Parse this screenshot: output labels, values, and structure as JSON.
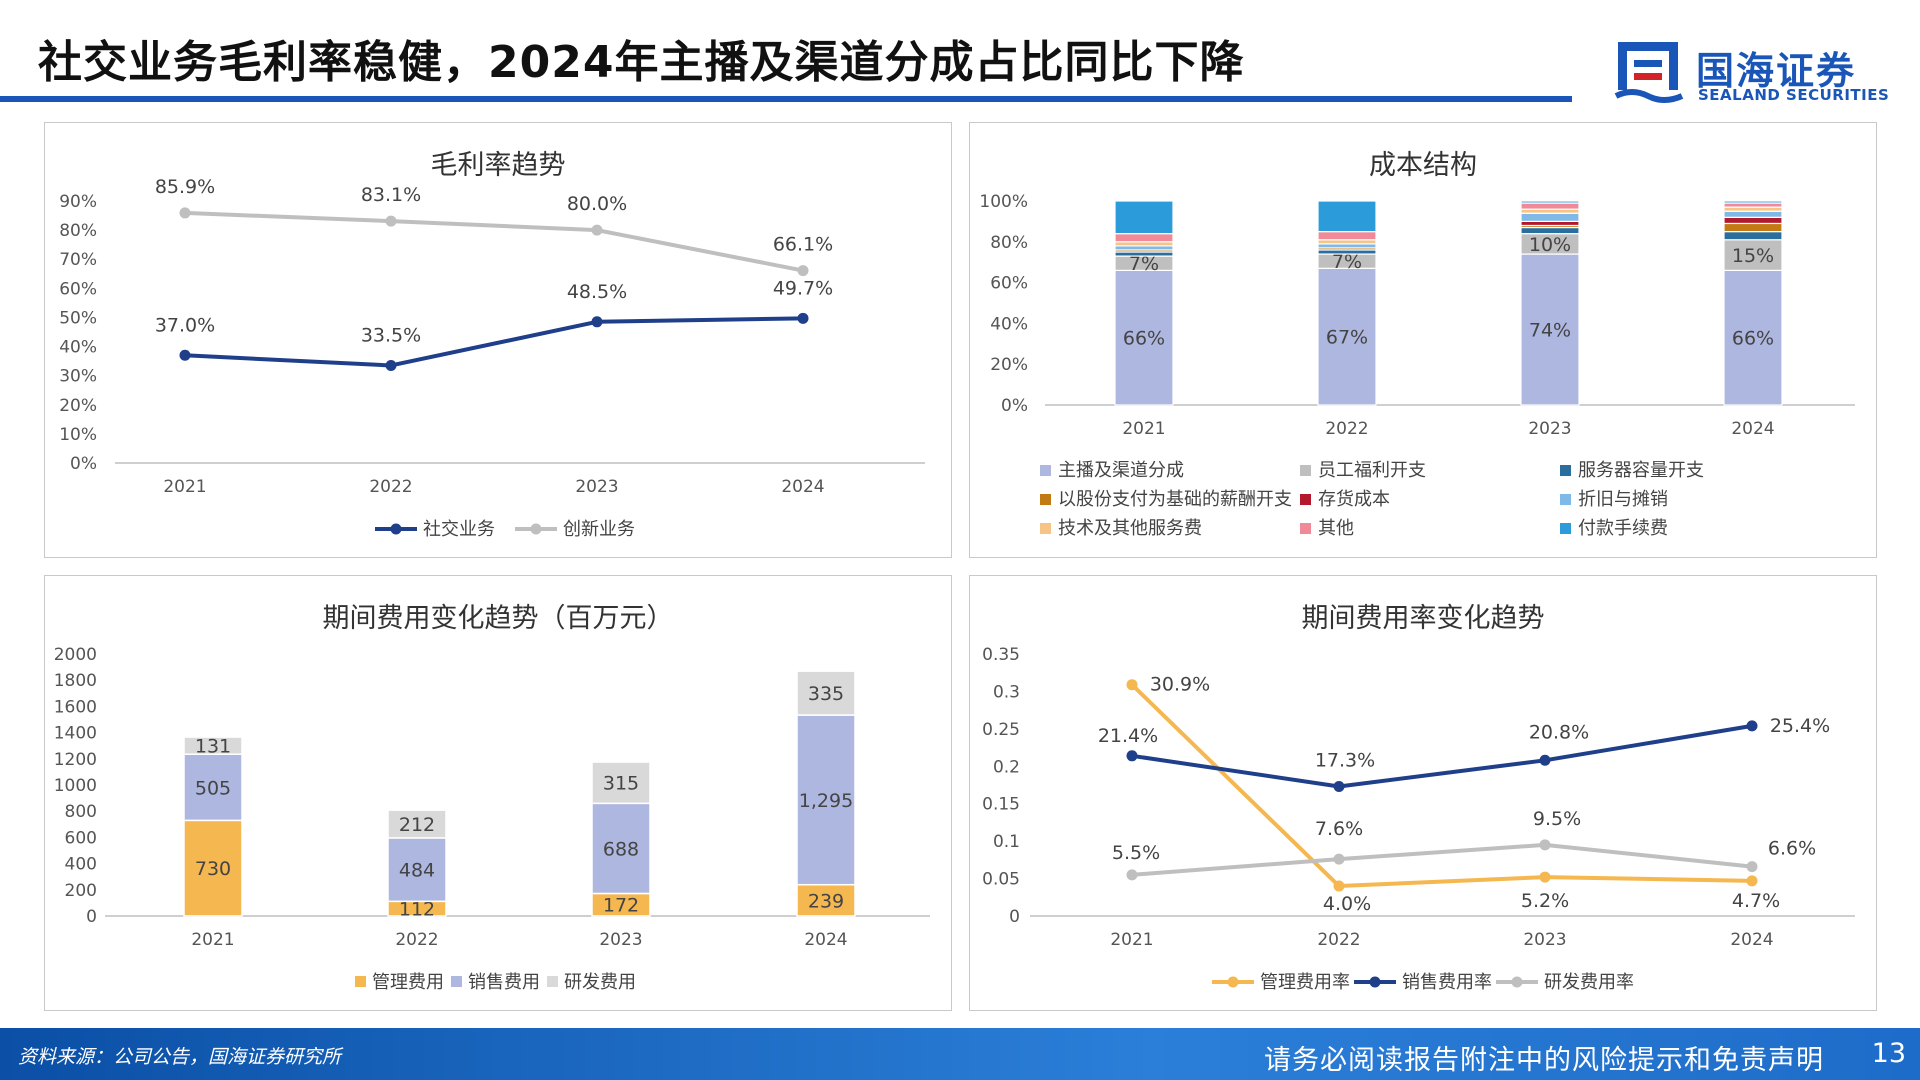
{
  "header": {
    "title": "社交业务毛利率稳健，2024年主播及渠道分成占比同比下降",
    "logo_cn": "国海证券",
    "logo_en": "SEALAND SECURITIES"
  },
  "footer": {
    "source": "资料来源：公司公告，国海证券研究所",
    "disclaimer": "请务必阅读报告附注中的风险提示和免责声明",
    "page": "13"
  },
  "colors": {
    "brand": "#1a56b8",
    "navy": "#1f3f8a",
    "gray_line": "#bfbfbf",
    "orange": "#f5b750",
    "lavender": "#aeb7e0",
    "lightgray": "#d9d9d9"
  },
  "chart_data": [
    {
      "id": "gross_margin",
      "type": "line",
      "title": "毛利率趋势",
      "categories": [
        "2021",
        "2022",
        "2023",
        "2024"
      ],
      "ylim": [
        0,
        0.9
      ],
      "yticks": [
        "0%",
        "10%",
        "20%",
        "30%",
        "40%",
        "50%",
        "60%",
        "70%",
        "80%",
        "90%"
      ],
      "series": [
        {
          "name": "社交业务",
          "color": "#1f3f8a",
          "values": [
            0.37,
            0.335,
            0.485,
            0.497
          ],
          "labels": [
            "37.0%",
            "33.5%",
            "48.5%",
            "49.7%"
          ]
        },
        {
          "name": "创新业务",
          "color": "#bfbfbf",
          "values": [
            0.859,
            0.831,
            0.8,
            0.661
          ],
          "labels": [
            "85.9%",
            "83.1%",
            "80.0%",
            "66.1%"
          ]
        }
      ]
    },
    {
      "id": "cost_structure",
      "type": "bar",
      "stacked": true,
      "title": "成本结构",
      "categories": [
        "2021",
        "2022",
        "2023",
        "2024"
      ],
      "ylim": [
        0,
        1
      ],
      "yticks": [
        "0%",
        "20%",
        "40%",
        "60%",
        "80%",
        "100%"
      ],
      "series": [
        {
          "name": "主播及渠道分成",
          "color": "#aeb7e0",
          "values": [
            0.66,
            0.67,
            0.74,
            0.66
          ],
          "labels": [
            "66%",
            "67%",
            "74%",
            "66%"
          ]
        },
        {
          "name": "员工福利开支",
          "color": "#bfbfbf",
          "values": [
            0.07,
            0.07,
            0.1,
            0.15
          ],
          "labels": [
            "7%",
            "7%",
            "10%",
            "15%"
          ]
        },
        {
          "name": "服务器容量开支",
          "color": "#2a6e9e",
          "values": [
            0.02,
            0.02,
            0.03,
            0.04
          ]
        },
        {
          "name": "以股份支付为基础的薪酬开支",
          "color": "#c27a14",
          "values": [
            0.01,
            0.01,
            0.01,
            0.04
          ]
        },
        {
          "name": "存货成本",
          "color": "#b4182c",
          "values": [
            0.0,
            0.0,
            0.02,
            0.03
          ]
        },
        {
          "name": "折旧与摊销",
          "color": "#7fb9e8",
          "values": [
            0.02,
            0.02,
            0.04,
            0.03
          ]
        },
        {
          "name": "技术及其他服务费",
          "color": "#f6c486",
          "values": [
            0.02,
            0.02,
            0.02,
            0.02
          ]
        },
        {
          "name": "其他",
          "color": "#f08a98",
          "values": [
            0.04,
            0.04,
            0.03,
            0.02
          ]
        },
        {
          "name": "付款手续费",
          "color": "#2b9bd9",
          "values": [
            0.16,
            0.15,
            0.01,
            0.01
          ]
        }
      ]
    },
    {
      "id": "expenses",
      "type": "bar",
      "stacked": true,
      "title": "期间费用变化趋势（百万元）",
      "categories": [
        "2021",
        "2022",
        "2023",
        "2024"
      ],
      "ylim": [
        0,
        2000
      ],
      "yticks": [
        "0",
        "200",
        "400",
        "600",
        "800",
        "1000",
        "1200",
        "1400",
        "1600",
        "1800",
        "2000"
      ],
      "series": [
        {
          "name": "管理费用",
          "color": "#f5b750",
          "values": [
            730,
            112,
            172,
            239
          ],
          "labels": [
            "730",
            "112",
            "172",
            "239"
          ]
        },
        {
          "name": "销售费用",
          "color": "#aeb7e0",
          "values": [
            505,
            484,
            688,
            1295
          ],
          "labels": [
            "505",
            "484",
            "688",
            "1,295"
          ]
        },
        {
          "name": "研发费用",
          "color": "#d9d9d9",
          "values": [
            131,
            212,
            315,
            335
          ],
          "labels": [
            "131",
            "212",
            "315",
            "335"
          ]
        }
      ]
    },
    {
      "id": "expense_ratio",
      "type": "line",
      "title": "期间费用率变化趋势",
      "categories": [
        "2021",
        "2022",
        "2023",
        "2024"
      ],
      "ylim": [
        0,
        0.35
      ],
      "yticks": [
        "0",
        "0.05",
        "0.1",
        "0.15",
        "0.2",
        "0.25",
        "0.3",
        "0.35"
      ],
      "series": [
        {
          "name": "管理费用率",
          "color": "#f5b750",
          "values": [
            0.309,
            0.04,
            0.052,
            0.047
          ],
          "labels": [
            "30.9%",
            "4.0%",
            "5.2%",
            "4.7%"
          ]
        },
        {
          "name": "销售费用率",
          "color": "#1f3f8a",
          "values": [
            0.214,
            0.173,
            0.208,
            0.254
          ],
          "labels": [
            "21.4%",
            "17.3%",
            "20.8%",
            "25.4%"
          ]
        },
        {
          "name": "研发费用率",
          "color": "#bfbfbf",
          "values": [
            0.055,
            0.076,
            0.095,
            0.066
          ],
          "labels": [
            "5.5%",
            "7.6%",
            "9.5%",
            "6.6%"
          ]
        }
      ]
    }
  ]
}
